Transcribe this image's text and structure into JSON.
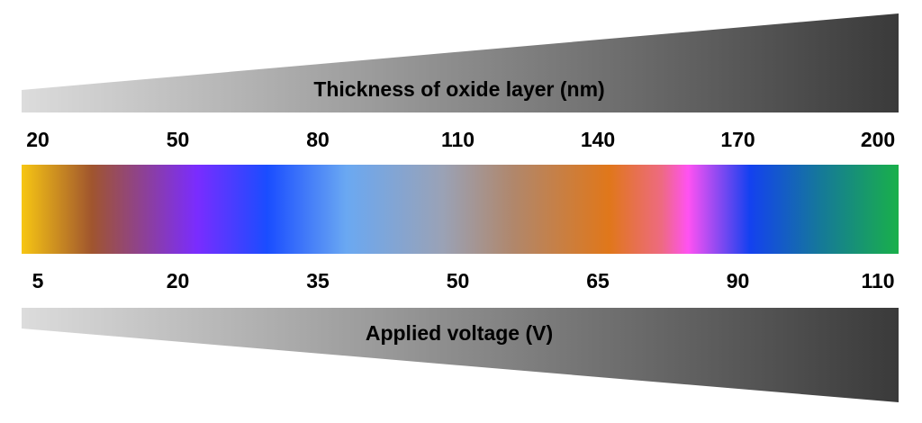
{
  "top_scale": {
    "title": "Thickness of oxide layer (nm)",
    "ticks": [
      20,
      50,
      80,
      110,
      140,
      170,
      200
    ]
  },
  "bottom_scale": {
    "title": "Applied voltage (V)",
    "ticks": [
      5,
      20,
      35,
      50,
      65,
      90,
      110
    ]
  }
}
